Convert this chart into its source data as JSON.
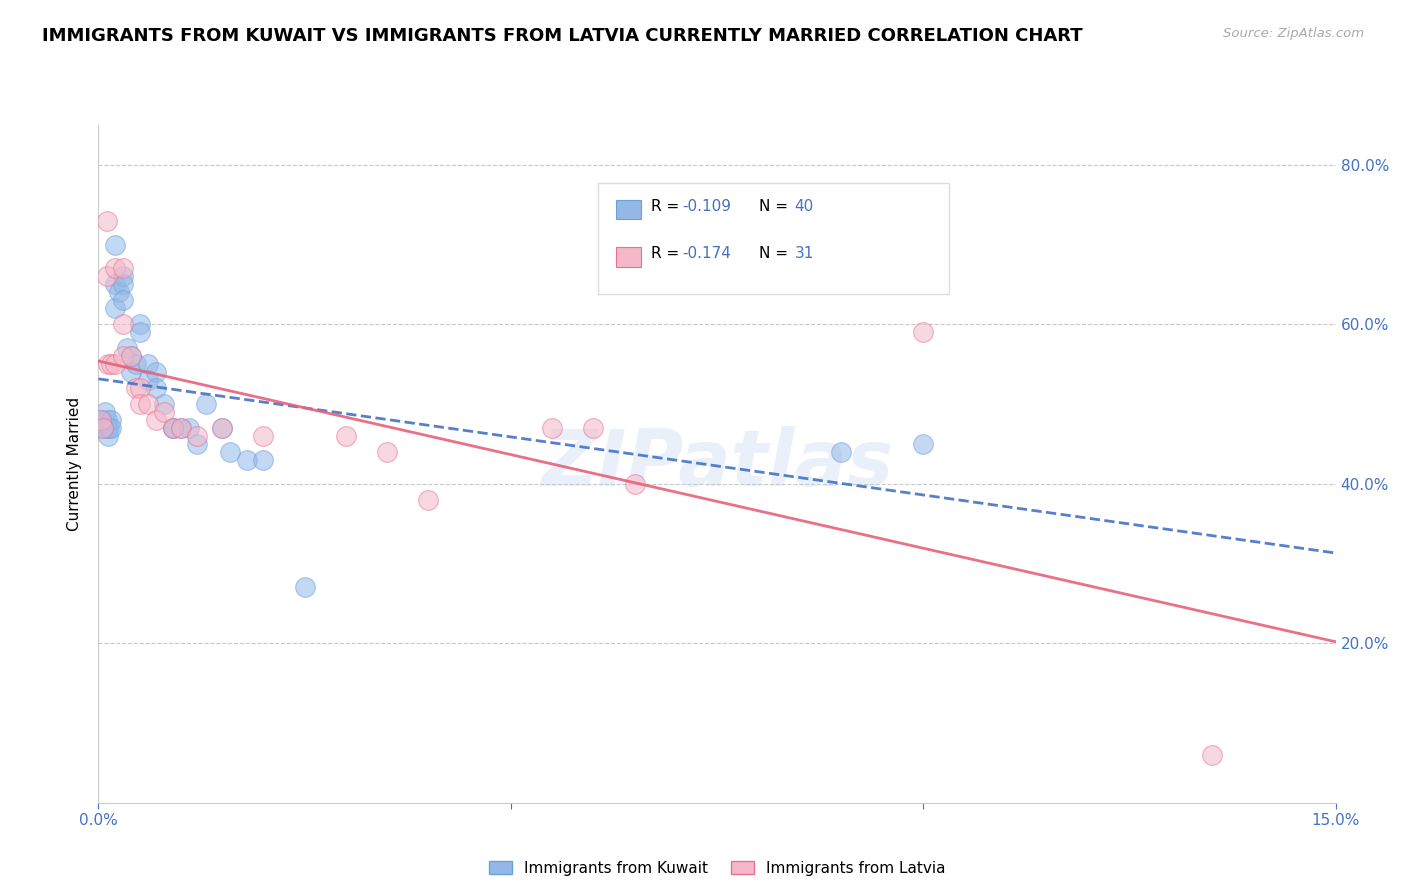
{
  "title": "IMMIGRANTS FROM KUWAIT VS IMMIGRANTS FROM LATVIA CURRENTLY MARRIED CORRELATION CHART",
  "source": "Source: ZipAtlas.com",
  "ylabel": "Currently Married",
  "xlim": [
    0.0,
    0.15
  ],
  "ylim": [
    0.0,
    0.85
  ],
  "bottom_legend_entries": [
    {
      "label": "Immigrants from Kuwait",
      "color": "#aec6f0"
    },
    {
      "label": "Immigrants from Latvia",
      "color": "#f4b8c8"
    }
  ],
  "kuwait_x": [
    0.0003,
    0.0005,
    0.0008,
    0.001,
    0.001,
    0.0012,
    0.0013,
    0.0015,
    0.0015,
    0.002,
    0.002,
    0.002,
    0.0025,
    0.003,
    0.003,
    0.003,
    0.0035,
    0.004,
    0.004,
    0.0045,
    0.005,
    0.005,
    0.006,
    0.006,
    0.007,
    0.007,
    0.008,
    0.009,
    0.009,
    0.01,
    0.011,
    0.012,
    0.013,
    0.015,
    0.016,
    0.018,
    0.02,
    0.025,
    0.09,
    0.1
  ],
  "kuwait_y": [
    0.48,
    0.47,
    0.49,
    0.48,
    0.47,
    0.46,
    0.47,
    0.48,
    0.47,
    0.7,
    0.65,
    0.62,
    0.64,
    0.66,
    0.65,
    0.63,
    0.57,
    0.56,
    0.54,
    0.55,
    0.6,
    0.59,
    0.55,
    0.53,
    0.54,
    0.52,
    0.5,
    0.47,
    0.47,
    0.47,
    0.47,
    0.45,
    0.5,
    0.47,
    0.44,
    0.43,
    0.43,
    0.27,
    0.44,
    0.45
  ],
  "latvia_x": [
    0.0003,
    0.0005,
    0.001,
    0.001,
    0.0012,
    0.0015,
    0.002,
    0.002,
    0.003,
    0.003,
    0.003,
    0.004,
    0.0045,
    0.005,
    0.005,
    0.006,
    0.007,
    0.008,
    0.009,
    0.01,
    0.012,
    0.015,
    0.02,
    0.03,
    0.035,
    0.04,
    0.055,
    0.06,
    0.065,
    0.1,
    0.135
  ],
  "latvia_y": [
    0.48,
    0.47,
    0.73,
    0.66,
    0.55,
    0.55,
    0.67,
    0.55,
    0.67,
    0.6,
    0.56,
    0.56,
    0.52,
    0.52,
    0.5,
    0.5,
    0.48,
    0.49,
    0.47,
    0.47,
    0.46,
    0.47,
    0.46,
    0.46,
    0.44,
    0.38,
    0.47,
    0.47,
    0.4,
    0.59,
    0.06
  ],
  "kuwait_color": "#93b8e8",
  "latvia_color": "#f4b8c8",
  "kuwait_edge": "#6da0d8",
  "latvia_edge": "#e87090",
  "kuwait_line_color": "#4472c4",
  "latvia_line_color": "#e8607a",
  "watermark": "ZIPatlas",
  "title_fontsize": 13,
  "axis_label_color": "#4472c4",
  "grid_color": "#c8c8c8",
  "marker_size": 200,
  "marker_alpha": 0.55,
  "legend_r1": "R = -0.109   N = 40",
  "legend_r2": "R = -0.174   N =  31",
  "legend_r1_val": "-0.109",
  "legend_r2_val": "-0.174",
  "legend_n1": "40",
  "legend_n2": "31"
}
